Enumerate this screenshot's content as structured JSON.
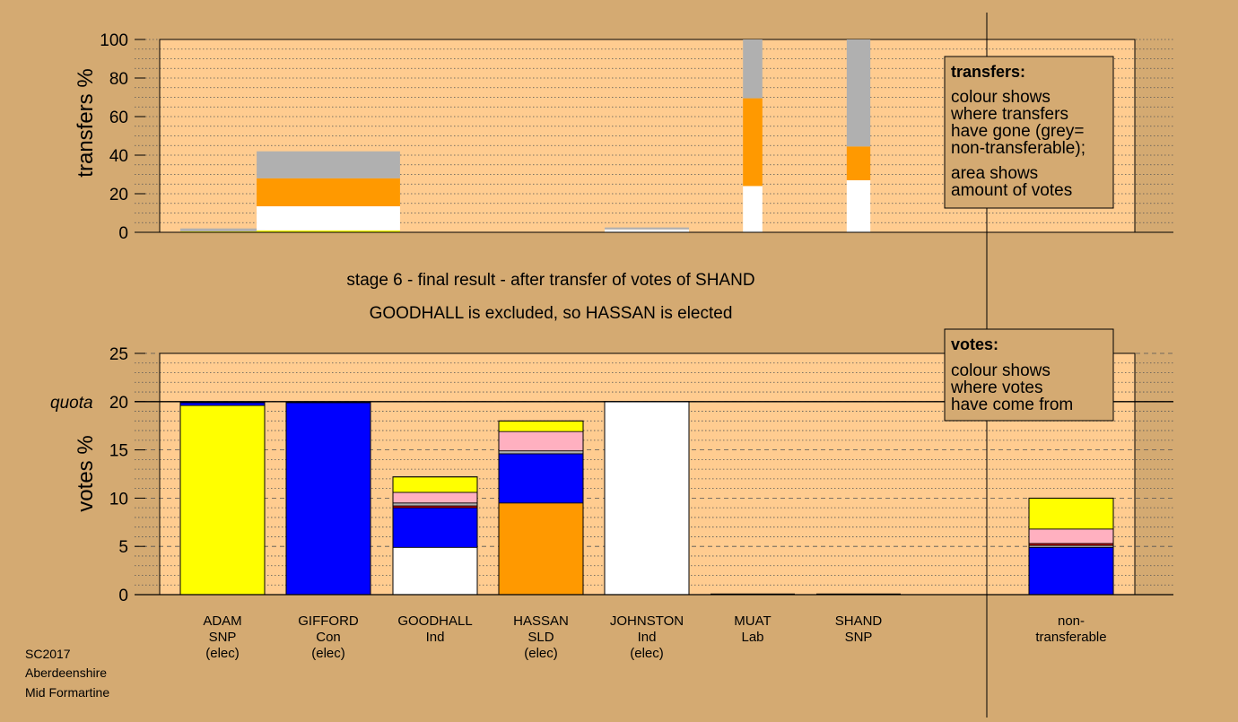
{
  "colors": {
    "background": "#d4aa72",
    "plot_area": "#ffcc90",
    "SNP": "#ffff00",
    "Con": "#0000ff",
    "Ind_GOODHALL": "#ffb0c0",
    "SLD": "#ff9900",
    "Ind_JOHNSTON": "#ffffff",
    "Lab": "#cc0000",
    "non_transferable": "#b0b0b0"
  },
  "stage_title": {
    "line1": "stage 6 - final result - after transfer of votes of SHAND",
    "line2": "GOODHALL is excluded, so HASSAN is elected"
  },
  "footer": {
    "line1": "SC2017",
    "line2": "Aberdeenshire",
    "line3": "Mid Formartine"
  },
  "transfers_legend": {
    "title": "transfers:",
    "lines": [
      "colour shows",
      "where transfers",
      "have gone (grey=",
      "non-transferable);",
      "area shows",
      "amount of votes"
    ]
  },
  "votes_legend": {
    "title": "votes:",
    "lines": [
      "colour shows",
      "where votes",
      "have come from"
    ]
  },
  "candidates": [
    {
      "name": "ADAM",
      "party": "SNP",
      "status": "(elec)"
    },
    {
      "name": "GIFFORD",
      "party": "Con",
      "status": "(elec)"
    },
    {
      "name": "GOODHALL",
      "party": "Ind",
      "status": ""
    },
    {
      "name": "HASSAN",
      "party": "SLD",
      "status": "(elec)"
    },
    {
      "name": "JOHNSTON",
      "party": "Ind",
      "status": "(elec)"
    },
    {
      "name": "MUAT",
      "party": "Lab",
      "status": ""
    },
    {
      "name": "SHAND",
      "party": "SNP",
      "status": ""
    }
  ],
  "nontransferable_label": {
    "line1": "non-",
    "line2": "transferable"
  },
  "chart_data": [
    {
      "type": "bar",
      "ylabel": "transfers %",
      "ylim": [
        0,
        100
      ],
      "yticks": [
        0,
        20,
        40,
        60,
        80,
        100
      ],
      "grid": true,
      "legend_placement": "top-right",
      "bars": [
        {
          "candidate": "ADAM",
          "width_share": 1.0,
          "segments": [
            {
              "color": "SNP",
              "value": 0.5
            },
            {
              "color": "non_transferable",
              "value": 1.5
            }
          ]
        },
        {
          "candidate": "GIFFORD",
          "width_share": 1.7,
          "segments": [
            {
              "color": "SNP",
              "value": 1
            },
            {
              "color": "Ind_JOHNSTON",
              "value": 12.5
            },
            {
              "color": "SLD",
              "value": 14.5
            },
            {
              "color": "non_transferable",
              "value": 14
            }
          ]
        },
        {
          "candidate": "JOHNSTON",
          "width_share": 1.0,
          "segments": [
            {
              "color": "Ind_JOHNSTON",
              "value": 1.5
            },
            {
              "color": "non_transferable",
              "value": 1
            }
          ]
        },
        {
          "candidate": "MUAT",
          "width_share": 0.23,
          "segments": [
            {
              "color": "Ind_JOHNSTON",
              "value": 24
            },
            {
              "color": "SLD",
              "value": 45.5
            },
            {
              "color": "non_transferable",
              "value": 30.5
            }
          ]
        },
        {
          "candidate": "SHAND",
          "width_share": 0.28,
          "segments": [
            {
              "color": "Ind_JOHNSTON",
              "value": 27
            },
            {
              "color": "SLD",
              "value": 17.5
            },
            {
              "color": "non_transferable",
              "value": 55.5
            }
          ]
        }
      ]
    },
    {
      "type": "bar",
      "ylabel": "votes %",
      "ylim": [
        0,
        25
      ],
      "yticks": [
        0,
        5,
        10,
        15,
        20,
        25
      ],
      "quota": {
        "label": "quota",
        "value": 20
      },
      "grid": true,
      "legend_placement": "top-right",
      "categories": [
        "ADAM",
        "GIFFORD",
        "GOODHALL",
        "HASSAN",
        "JOHNSTON",
        "MUAT",
        "SHAND",
        "non-transferable"
      ],
      "stacks": [
        [
          {
            "color": "SNP",
            "value": 19.6
          },
          {
            "color": "Con",
            "value": 0.3
          }
        ],
        [
          {
            "color": "Con",
            "value": 19.9
          }
        ],
        [
          {
            "color": "Ind_JOHNSTON",
            "value": 4.9
          },
          {
            "color": "Con",
            "value": 4.1
          },
          {
            "color": "Lab",
            "value": 0.2
          },
          {
            "color": "non_transferable",
            "value": 0.3
          },
          {
            "color": "Ind_GOODHALL",
            "value": 1.1
          },
          {
            "color": "SNP",
            "value": 1.6
          }
        ],
        [
          {
            "color": "SLD",
            "value": 9.5
          },
          {
            "color": "Con",
            "value": 5.1
          },
          {
            "color": "non_transferable",
            "value": 0.3
          },
          {
            "color": "Ind_GOODHALL",
            "value": 2.0
          },
          {
            "color": "SNP",
            "value": 1.1
          }
        ],
        [
          {
            "color": "Ind_JOHNSTON",
            "value": 20.0
          }
        ],
        [],
        [],
        [
          {
            "color": "Con",
            "value": 4.9
          },
          {
            "color": "non_transferable",
            "value": 0.2
          },
          {
            "color": "Lab",
            "value": 0.2
          },
          {
            "color": "Ind_GOODHALL",
            "value": 1.5
          },
          {
            "color": "SNP",
            "value": 3.2
          }
        ]
      ]
    }
  ]
}
